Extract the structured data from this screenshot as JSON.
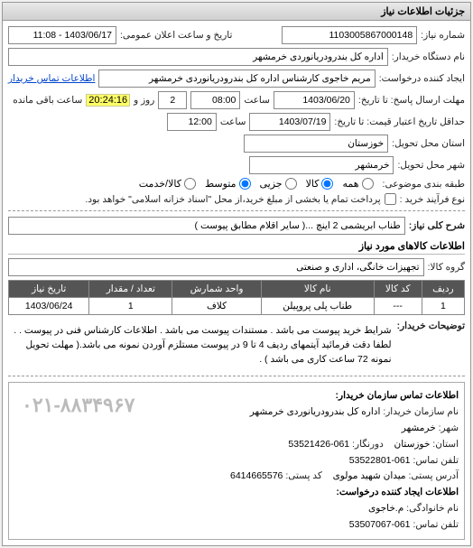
{
  "panel": {
    "title": "جزئیات اطلاعات نیاز"
  },
  "fields": {
    "req_no_label": "شماره نیاز:",
    "req_no": "1103005867000148",
    "announce_label": "تاریخ و ساعت اعلان عمومی:",
    "announce": "1403/06/17 - 11:08",
    "device_label": "نام دستگاه خریدار:",
    "device": "اداره کل بندرودریانوردی خرمشهر",
    "creator_label": "ایجاد کننده درخواست:",
    "creator": "مریم خاجوی کارشناس اداره کل بندرودریانوردی خرمشهر",
    "buyer_contact_link": "اطلاعات تماس خریدار",
    "deadline_label": "مهلت ارسال پاسخ: تا تاریخ:",
    "deadline_date": "1403/06/20",
    "deadline_time_label": "ساعت",
    "deadline_time": "08:00",
    "remain_and": "و",
    "remain_days": "2",
    "remain_days_label": "روز و",
    "remain_time": "20:24:16",
    "remain_suffix": "ساعت باقی مانده",
    "validity_label": "حداقل تاریخ اعتبار قیمت: تا تاریخ:",
    "validity_date": "1403/07/19",
    "validity_time_label": "ساعت",
    "validity_time": "12:00",
    "province_label": "استان محل تحویل:",
    "province": "خوزستان",
    "city_label": "شهر محل تحویل:",
    "city": "خرمشهر",
    "subject_class_label": "طبقه بندی موضوعی:",
    "radio_all": "همه",
    "radio_goods": "کالا",
    "radio_partial": "جزیی",
    "radio_medium": "متوسط",
    "radio_goods_service": "کالا/خدمت",
    "purchase_type_label": "نوع فرآیند خرید :",
    "purchase_type_note": "پرداخت تمام یا بخشی از مبلغ خرید،از محل \"اسناد خزانه اسلامی\" خواهد بود.",
    "need_desc_label": "شرح کلی نیاز:",
    "need_desc": "طناب ابریشمی 2 اینچ ...( سایر اقلام مطابق پیوست )",
    "items_section": "اطلاعات کالاهای مورد نیاز",
    "goods_group_label": "گروه کالا:",
    "goods_group": "تجهیزات خانگی، اداری و صنعتی",
    "notes_label": "توضیحات خریدار:",
    "notes_text": "شرایط خرید پیوست می باشد . مستندات پیوست می باشد . اطلاعات کارشناس فنی در پیوست . . لطفا دقت فرمائید آیتمهای ردیف 4 تا 9 در پیوست مستلزم آوردن نمونه می باشد.( مهلت تحویل نمونه 72 ساعت کاری می باشد ) ."
  },
  "table": {
    "headers": [
      "ردیف",
      "کد کالا",
      "نام کالا",
      "واحد شمارش",
      "تعداد / مقدار",
      "تاریخ نیاز"
    ],
    "rows": [
      [
        "1",
        "---",
        "طناب پلی پروپیلن",
        "کلاف",
        "1",
        "1403/06/24"
      ]
    ]
  },
  "contact": {
    "section_title": "اطلاعات تماس سازمان خریدار:",
    "org_label": "نام سازمان خریدار:",
    "org": "اداره کل بندرودریانوردی خرمشهر",
    "city_label": "شهر:",
    "city": "خرمشهر",
    "province_label": "استان:",
    "province": "خوزستان",
    "fax_label": "دورنگار:",
    "fax": "061-53521426",
    "phone_label": "تلفن تماس:",
    "phone": "061-53522801",
    "address_label": "آدرس پستی:",
    "address": "میدان شهید مولوی",
    "postal_label": "کد پستی:",
    "postal": "6414665576",
    "creator_section": "اطلاعات ایجاد کننده درخواست:",
    "family_label": "نام خانوادگی:",
    "family": "م.خاجوی",
    "cphone_label": "تلفن تماس:",
    "cphone": "061-53507067",
    "big_phone": "۰۲۱-۸۸۳۴۹۶۷"
  },
  "colors": {
    "header_bg": "#d8d8d8",
    "border": "#888888",
    "link": "#0044cc",
    "highlight": "#ffff66",
    "th_bg": "#555555",
    "th_fg": "#ffffff"
  }
}
